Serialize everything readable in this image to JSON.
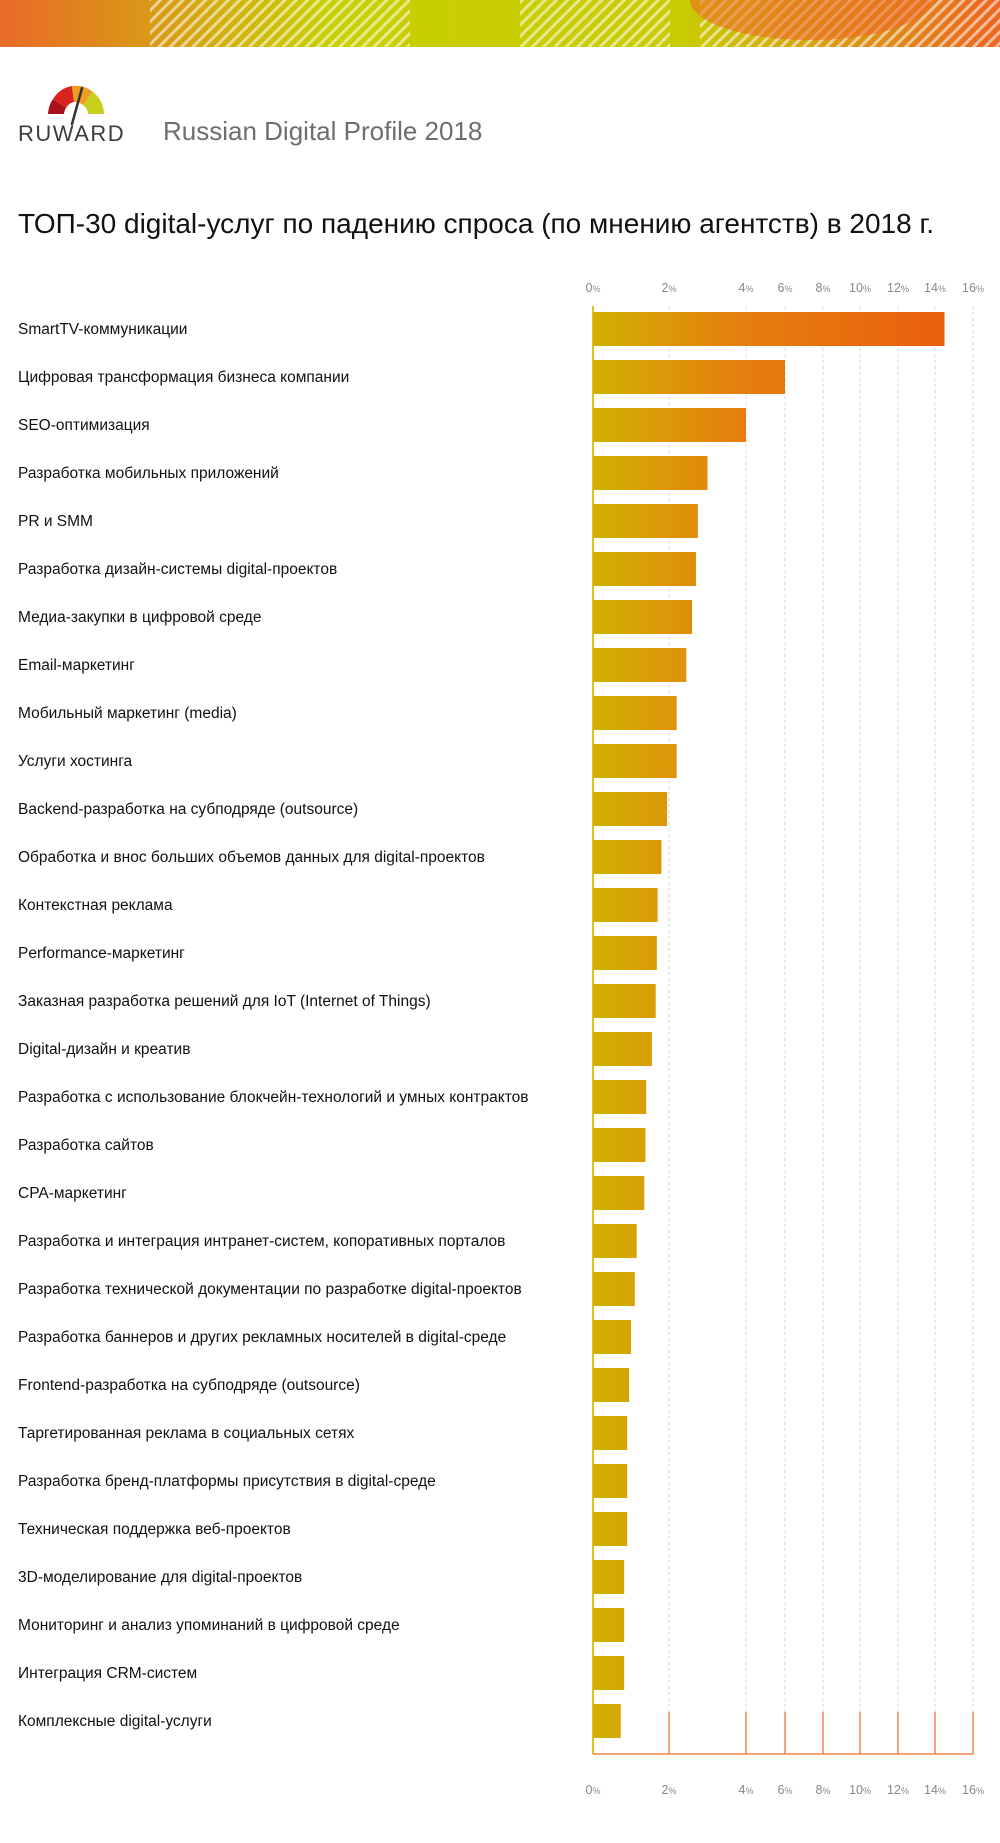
{
  "header": {
    "brand": "RUWARD",
    "subtitle": "Russian Digital Profile 2018"
  },
  "colors": {
    "bar_start": "#d0b100",
    "bar_end": "#eb5a0d",
    "axis": "#e3c21b",
    "grid": "#d6d6d6",
    "grid_bottom": "#ee6a2a",
    "logo": [
      "#a8101c",
      "#d8231f",
      "#ee9d22",
      "#c8cf1c"
    ]
  },
  "chart_data": {
    "type": "bar",
    "orientation": "horizontal",
    "title": "ТОП-30 digital-услуг по падению спроса (по мнению агентств) в 2018 г.",
    "xlabel": "",
    "ylabel": "",
    "xlim": [
      0,
      16
    ],
    "grid": true,
    "ticks": [
      {
        "value": 0,
        "num": "0",
        "unit": "%"
      },
      {
        "value": 2,
        "num": "2",
        "unit": "%"
      },
      {
        "value": 4,
        "num": "4",
        "unit": "%"
      },
      {
        "value": 6,
        "num": "6",
        "unit": "%"
      },
      {
        "value": 8,
        "num": "8",
        "unit": "%"
      },
      {
        "value": 10,
        "num": "10",
        "unit": "%"
      },
      {
        "value": 12,
        "num": "12",
        "unit": "%"
      },
      {
        "value": 14,
        "num": "14",
        "unit": "%"
      },
      {
        "value": 16,
        "num": "16",
        "unit": "%"
      }
    ],
    "categories": [
      "SmartTV-коммуникации",
      "Цифровая трансформация бизнеса компании",
      "SEO-оптимизация",
      "Разработка мобильных приложений",
      "PR и SMM",
      "Разработка дизайн-системы digital-проектов",
      "Медиа-закупки в цифровой среде",
      "Email-маркетинг",
      "Мобильный маркетинг (media)",
      "Услуги хостинга",
      "Backend-разработка на субподряде (outsource)",
      "Обработка и внос больших объемов данных для digital-проектов",
      "Контекстная реклама",
      "Performance-маркетинг",
      "Заказная разработка решений для IoT (Internet of Things)",
      "Digital-дизайн и креатив",
      "Разработка с использование блокчейн-технологий и умных контрактов",
      "Разработка сайтов",
      "CPA-маркетинг",
      "Разработка и интеграция интранет-систем, копоративных порталов",
      "Разработка технической документации по разработке digital-проектов",
      "Разработка баннеров и других рекламных носителей в digital-среде",
      "Frontend-разработка на субподряде (outsource)",
      "Таргетированная реклама в социальных сетях",
      "Разработка бренд-платформы присутствия в digital-среде",
      "Техническая поддержка веб-проектов",
      "3D-моделирование для digital-проектов",
      "Мониторинг и анализ упоминаний в цифровой среде",
      "Интеграция CRM-систем",
      "Комплексные digital-услуги"
    ],
    "values": [
      14.5,
      6.0,
      4.0,
      3.0,
      2.75,
      2.7,
      2.6,
      2.45,
      2.2,
      2.2,
      1.95,
      1.8,
      1.7,
      1.68,
      1.65,
      1.55,
      1.4,
      1.38,
      1.35,
      1.15,
      1.1,
      1.0,
      0.95,
      0.9,
      0.9,
      0.9,
      0.82,
      0.82,
      0.82,
      0.73
    ]
  }
}
